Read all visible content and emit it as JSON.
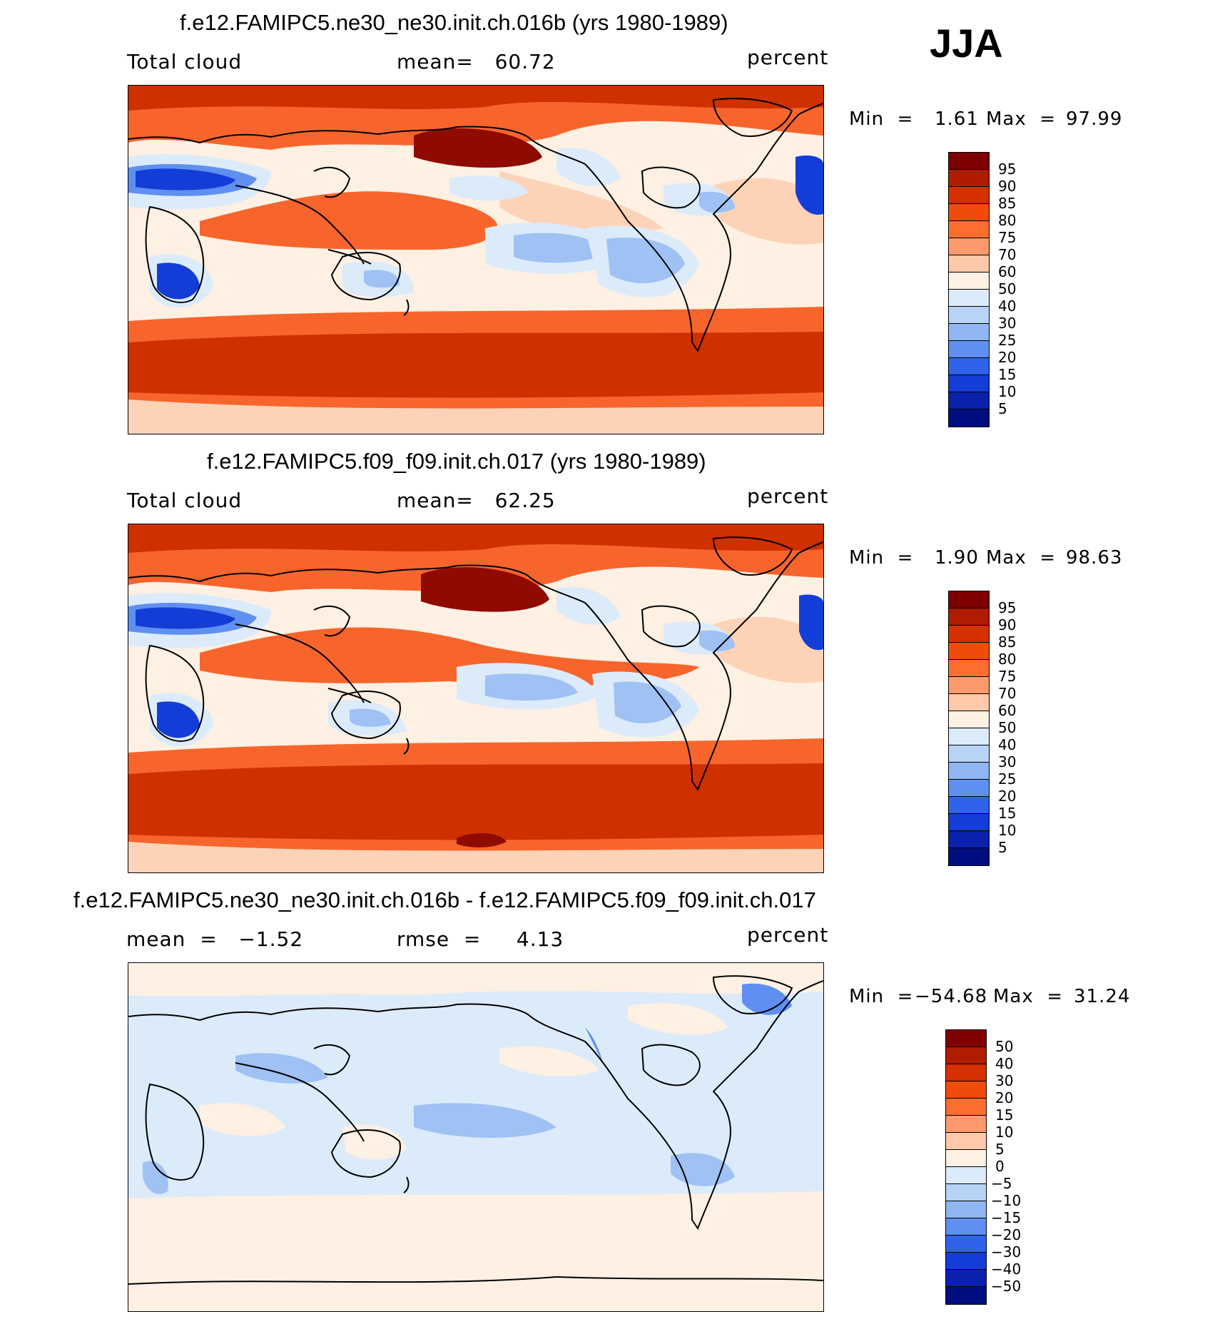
{
  "season": "JJA",
  "panels": [
    {
      "title": "f.e12.FAMIPC5.ne30_ne30.init.ch.016b (yrs 1980-1989)",
      "left_label": "Total cloud",
      "center_label": "mean=   60.72",
      "units": "percent",
      "min_label": "Min  =",
      "min_value": "1.61",
      "max_label": "Max  =",
      "max_value": "97.99",
      "colorbar_labels": [
        "95",
        "90",
        "85",
        "80",
        "75",
        "70",
        "60",
        "50",
        "40",
        "30",
        "25",
        "20",
        "15",
        "10",
        "5"
      ]
    },
    {
      "title": "f.e12.FAMIPC5.f09_f09.init.ch.017 (yrs 1980-1989)",
      "left_label": "Total cloud",
      "center_label": "mean=   62.25",
      "units": "percent",
      "min_label": "Min  =",
      "min_value": "1.90",
      "max_label": "Max  =",
      "max_value": "98.63",
      "colorbar_labels": [
        "95",
        "90",
        "85",
        "80",
        "75",
        "70",
        "60",
        "50",
        "40",
        "30",
        "25",
        "20",
        "15",
        "10",
        "5"
      ]
    },
    {
      "title": "f.e12.FAMIPC5.ne30_ne30.init.ch.016b - f.e12.FAMIPC5.f09_f09.init.ch.017",
      "left_label": "mean  =   −1.52",
      "center_label": "rmse  =     4.13",
      "units": "percent",
      "min_label": "Min  =",
      "min_value": "−54.68",
      "max_label": "Max  =",
      "max_value": "31.24",
      "colorbar_labels": [
        "50",
        "40",
        "30",
        "20",
        "15",
        "10",
        "5",
        "0",
        "−5",
        "−10",
        "−15",
        "−20",
        "−30",
        "−40",
        "−50"
      ]
    }
  ],
  "colorbar_colors": [
    "#7f0000",
    "#b01c00",
    "#d63000",
    "#ef4b0c",
    "#fb6e30",
    "#fc9a6d",
    "#fdc9a8",
    "#fef0e3",
    "#dcebfa",
    "#b7d3f6",
    "#8fb6f2",
    "#5f8ff0",
    "#2f63ea",
    "#133dd6",
    "#0a21ad",
    "#000e80"
  ],
  "map_colors": {
    "very_high": "#8f0a00",
    "high": "#cf3000",
    "mid_high": "#f7652c",
    "mid": "#fc9a6d",
    "low_high": "#fdd3b8",
    "neutral": "#fef0e3",
    "low": "#dcebfa",
    "mid_low": "#9fc1f4",
    "lower": "#5f8ff0",
    "lowest": "#133dd6"
  }
}
